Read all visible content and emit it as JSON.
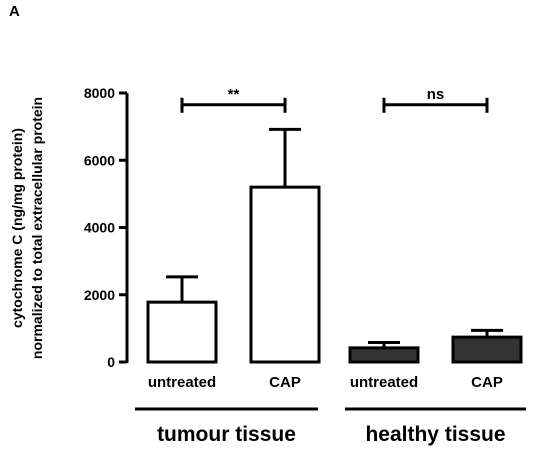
{
  "panel_label": "A",
  "chart_data": {
    "type": "bar",
    "ylabel": "cytochrome C (ng/mg protein)",
    "ylabel2": "normalized to total extracellular protein",
    "ylim": [
      0,
      8000
    ],
    "yticks": [
      0,
      2000,
      4000,
      6000,
      8000
    ],
    "categories": [
      "untreated",
      "CAP",
      "untreated",
      "CAP"
    ],
    "values": [
      1780,
      5200,
      420,
      740
    ],
    "errors": [
      750,
      1720,
      160,
      200
    ],
    "groups": [
      {
        "label": "tumour tissue",
        "members": [
          0,
          1
        ],
        "fill": "#ffffff"
      },
      {
        "label": "healthy tissue",
        "members": [
          2,
          3
        ],
        "fill": "#333333"
      }
    ],
    "significance": [
      {
        "from": 0,
        "to": 1,
        "label": "**",
        "y": 7650
      },
      {
        "from": 2,
        "to": 3,
        "label": "ns",
        "y": 7650
      }
    ],
    "grid": false
  }
}
